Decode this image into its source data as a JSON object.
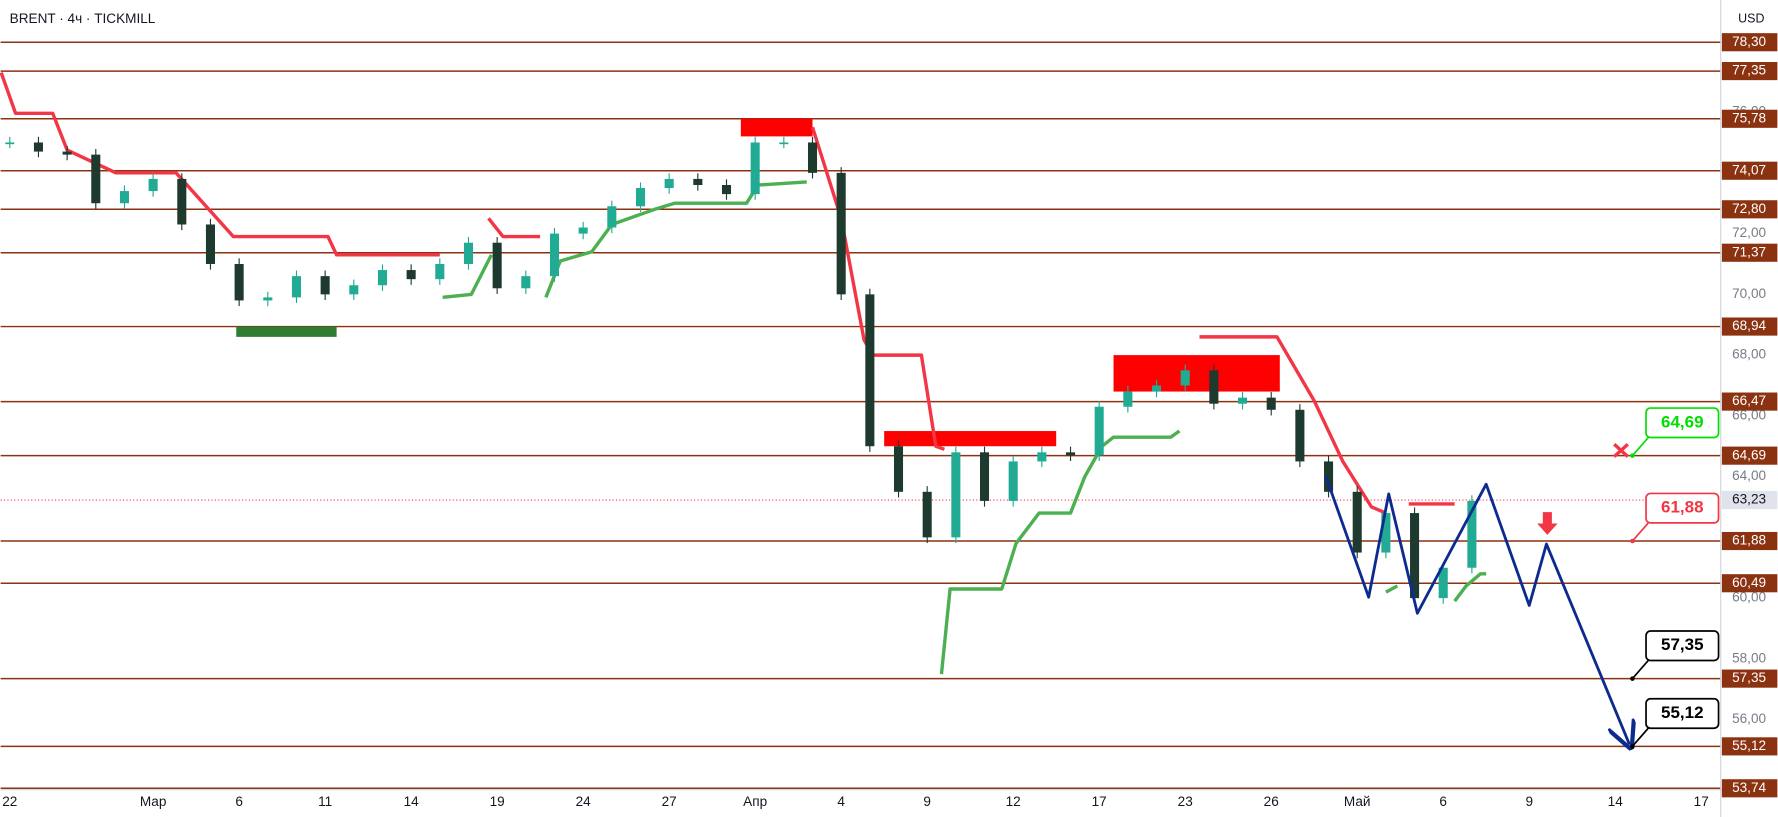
{
  "header": {
    "symbol": "BRENT · 4ч · TICKMILL",
    "currency": "USD"
  },
  "chart_data": {
    "type": "candlestick",
    "up_color": "#22ab94",
    "down_color": "#1e3a2f",
    "xlim": [
      -0.32,
      59.68
    ],
    "ylim": [
      53.69,
      79.69
    ],
    "xticks": [
      {
        "value": 0,
        "label": "22"
      },
      {
        "value": 5,
        "label": "Мар"
      },
      {
        "value": 8,
        "label": "6"
      },
      {
        "value": 11,
        "label": "11"
      },
      {
        "value": 14,
        "label": "14"
      },
      {
        "value": 17,
        "label": "19"
      },
      {
        "value": 20,
        "label": "24"
      },
      {
        "value": 23,
        "label": "27"
      },
      {
        "value": 26,
        "label": "Апр"
      },
      {
        "value": 29,
        "label": "4"
      },
      {
        "value": 32,
        "label": "9"
      },
      {
        "value": 35,
        "label": "12"
      },
      {
        "value": 38,
        "label": "17"
      },
      {
        "value": 41,
        "label": "23"
      },
      {
        "value": 44,
        "label": "26"
      },
      {
        "value": 47,
        "label": "Май"
      },
      {
        "value": 50,
        "label": "6"
      },
      {
        "value": 53,
        "label": "9"
      },
      {
        "value": 56,
        "label": "14"
      },
      {
        "value": 59,
        "label": "17"
      }
    ],
    "yticks": [
      {
        "value": 56,
        "label": "56,00"
      },
      {
        "value": 58,
        "label": "58,00"
      },
      {
        "value": 60,
        "label": "60,00"
      },
      {
        "value": 64,
        "label": "64,00"
      },
      {
        "value": 66,
        "label": "66,00"
      },
      {
        "value": 68,
        "label": "68,00"
      },
      {
        "value": 70,
        "label": "70,00"
      },
      {
        "value": 72,
        "label": "72,00"
      },
      {
        "value": 76,
        "label": "76,00"
      }
    ],
    "x": [
      0,
      1,
      2,
      3,
      4,
      5,
      6,
      7,
      8,
      9,
      10,
      11,
      12,
      13,
      14,
      15,
      16,
      17,
      18,
      19,
      20,
      21,
      22,
      23,
      24,
      25,
      26,
      27,
      28,
      29,
      30,
      31,
      32,
      33,
      34,
      35,
      36,
      37,
      38,
      39,
      40,
      41,
      42,
      43,
      44,
      45,
      46,
      47,
      48,
      49,
      50,
      51
    ],
    "values": [
      75.0,
      74.7,
      74.6,
      73.0,
      73.4,
      73.8,
      72.3,
      71.0,
      69.8,
      69.9,
      70.6,
      70.0,
      70.3,
      70.8,
      70.5,
      71.0,
      71.7,
      70.2,
      70.6,
      72.0,
      72.2,
      72.9,
      73.5,
      73.8,
      73.6,
      73.3,
      75.0,
      75.0,
      74.0,
      70.0,
      65.0,
      63.5,
      62.0,
      64.8,
      63.2,
      64.5,
      64.8,
      64.7,
      66.3,
      66.8,
      67.0,
      67.5,
      66.4,
      66.6,
      66.2,
      64.5,
      63.5,
      61.5,
      62.8,
      60.0,
      61.0,
      63.2
    ],
    "levels": {
      "color": "#8b3211",
      "values": [
        {
          "value": 78.3,
          "label": "78,30"
        },
        {
          "value": 77.35,
          "label": "77,35"
        },
        {
          "value": 75.78,
          "label": "75,78"
        },
        {
          "value": 74.07,
          "label": "74,07"
        },
        {
          "value": 72.8,
          "label": "72,80"
        },
        {
          "value": 71.37,
          "label": "71,37"
        },
        {
          "value": 68.94,
          "label": "68,94"
        },
        {
          "value": 66.47,
          "label": "66,47"
        },
        {
          "value": 64.69,
          "label": "64,69"
        },
        {
          "value": 61.88,
          "label": "61,88"
        },
        {
          "value": 60.49,
          "label": "60,49"
        },
        {
          "value": 57.35,
          "label": "57,35"
        },
        {
          "value": 55.12,
          "label": "55,12"
        },
        {
          "value": 53.74,
          "label": "53,74"
        }
      ]
    },
    "last_price": {
      "value": 63.23,
      "label": "63,23",
      "color": "#f23645"
    },
    "stop_down": {
      "color": "#f23645",
      "x": [
        -0.3,
        0.2,
        1.5,
        2.0,
        3.7,
        5.8,
        7.8,
        11.1,
        11.4,
        15.0,
        null,
        16.7,
        17.2,
        18.5,
        null,
        28.0,
        29.0,
        29.8,
        30.1,
        31.8,
        32.3,
        32.6,
        null,
        41.5,
        44.2,
        45.5,
        46.5,
        47.5,
        48.0,
        null,
        48.8,
        50.4
      ],
      "y": [
        77.3,
        75.96,
        75.96,
        74.75,
        74.0,
        74.0,
        71.9,
        71.9,
        71.3,
        71.3,
        null,
        72.5,
        71.9,
        71.9,
        null,
        75.5,
        72.5,
        68.5,
        68.0,
        68.0,
        65.0,
        64.9,
        null,
        68.6,
        68.6,
        66.5,
        64.5,
        63.0,
        62.8,
        null,
        63.1,
        63.1
      ]
    },
    "stop_up": {
      "color": "#4caf50",
      "x": [
        15.1,
        16.1,
        16.8,
        null,
        18.7,
        19.2,
        20.3,
        21.0,
        22.5,
        23.2,
        25.7,
        26.1,
        27.8,
        null,
        32.5,
        32.8,
        34.6,
        35.1,
        35.9,
        37.0,
        37.5,
        38.1,
        38.5,
        40.5,
        40.8,
        null,
        48.0,
        48.4,
        null,
        50.4,
        50.8,
        51.3,
        51.5
      ],
      "y": [
        69.9,
        70.0,
        71.3,
        null,
        69.9,
        71.1,
        71.4,
        72.3,
        72.8,
        73.0,
        73.0,
        73.6,
        73.7,
        null,
        57.5,
        60.3,
        60.3,
        61.8,
        62.8,
        62.8,
        64.0,
        65.0,
        65.3,
        65.3,
        65.5,
        null,
        60.2,
        60.4,
        null,
        59.9,
        60.4,
        60.8,
        60.8
      ]
    },
    "zones": [
      {
        "color": "#ff0000",
        "x": [
          25.5,
          28.0
        ],
        "y": [
          75.2,
          75.78
        ]
      },
      {
        "color": "#ff0000",
        "x": [
          30.5,
          36.5
        ],
        "y": [
          65.0,
          65.5
        ]
      },
      {
        "color": "#ff0000",
        "x": [
          38.5,
          44.3
        ],
        "y": [
          66.8,
          68.0
        ]
      },
      {
        "color": "#2e7d32",
        "x": [
          7.9,
          11.4
        ],
        "y": [
          68.6,
          68.94
        ]
      }
    ],
    "projection": {
      "color": "#0d2b8f",
      "x": [
        45.9,
        47.4,
        48.1,
        49.1,
        51.5,
        53.0,
        53.6,
        56.5
      ],
      "y": [
        64.02,
        60.03,
        63.43,
        59.5,
        63.75,
        59.76,
        61.78,
        55.18
      ]
    },
    "callouts": [
      {
        "label": "64,69",
        "value": 64.69,
        "x": 56.6,
        "color": "#00e000"
      },
      {
        "label": "61,88",
        "value": 61.88,
        "x": 56.6,
        "color": "#f23645"
      },
      {
        "label": "57,35",
        "value": 57.35,
        "x": 56.6,
        "color": "#000000"
      },
      {
        "label": "55,12",
        "value": 55.12,
        "x": 56.6,
        "color": "#000000"
      }
    ]
  }
}
